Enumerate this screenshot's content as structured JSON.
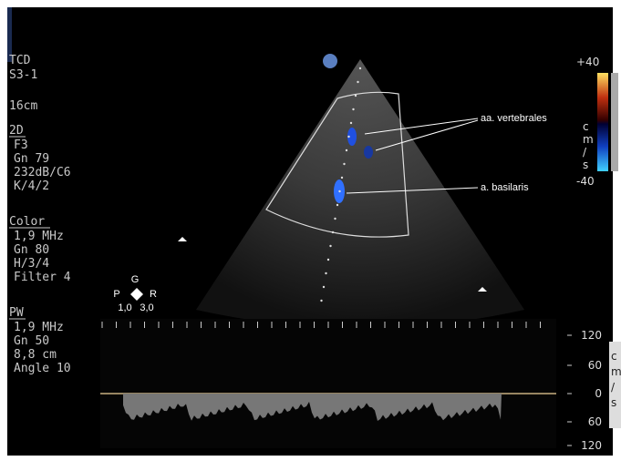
{
  "header": {
    "mode": "TCD",
    "probe": "S3-1",
    "depth": "16cm"
  },
  "sections": [
    {
      "title": "2D",
      "lines": [
        "F3",
        "Gn 79",
        "232dB/C6",
        "K/4/2"
      ]
    },
    {
      "title": "Color",
      "lines": [
        "1,9 MHz",
        "Gn 80",
        "H/3/4",
        "Filter 4"
      ]
    },
    {
      "title": "PW",
      "lines": [
        "1,9 MHz",
        "Gn 50",
        "8,8 cm",
        "Angle 10"
      ]
    }
  ],
  "annotations": [
    "aa. vertebrales",
    "a. basilaris"
  ],
  "color_scale": {
    "top": "+40",
    "bottom": "-40",
    "unit": [
      "c",
      "m",
      "/",
      "s"
    ]
  },
  "doppler_scale": {
    "ticks": [
      "120",
      "60",
      "0",
      "60",
      "120"
    ],
    "unit": [
      "c",
      "m",
      "/",
      "s"
    ]
  },
  "orientation": {
    "top": "G",
    "left": "P",
    "right": "R",
    "values": [
      "1,0",
      "3,0"
    ]
  }
}
